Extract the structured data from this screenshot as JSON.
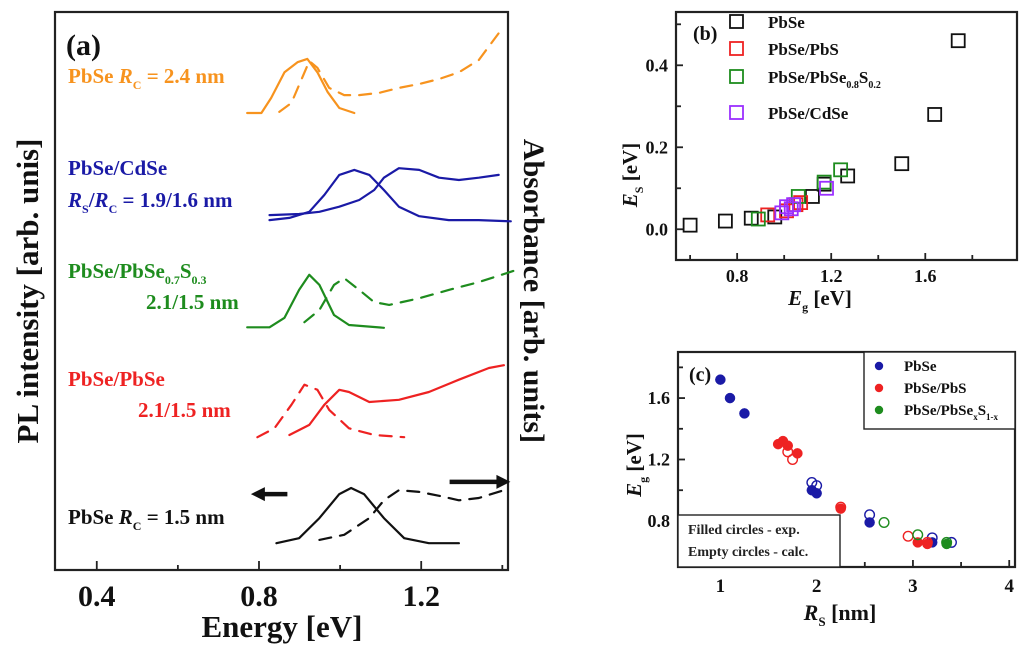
{
  "chart_data": [
    {
      "id": "a",
      "type": "line",
      "panel_label": "(a)",
      "xlabel": "Energy [eV]",
      "ylabel_left": "PL intensity [arb. unis]",
      "ylabel_right": "Absorbance [arb. units]",
      "xlim": [
        0.297,
        1.414
      ],
      "ylim": [
        0,
        100
      ],
      "xticks_major": [
        0.4,
        0.8,
        1.2
      ],
      "xticks_minor": [
        0.6,
        1.0,
        1.4
      ],
      "xtick_labels": [
        "0.4",
        "0.8",
        "1.2"
      ],
      "grid": false,
      "series": [
        {
          "name": "PbSe Rc = 2.4 nm PL",
          "color": "#f7931e",
          "style": "solid",
          "x": [
            0.771,
            0.806,
            0.83,
            0.863,
            0.895,
            0.919,
            0.944,
            0.969,
            0.998,
            1.035
          ],
          "y": [
            81.9,
            81.9,
            84.6,
            89.2,
            91.0,
            91.6,
            89.2,
            85.7,
            82.8,
            81.9
          ]
        },
        {
          "name": "PbSe Rc = 2.4 nm Absorbance",
          "color": "#f7931e",
          "style": "dashed",
          "x": [
            0.85,
            0.88,
            0.904,
            0.924,
            0.944,
            0.973,
            1.01,
            1.047,
            1.096,
            1.145,
            1.195,
            1.244,
            1.293,
            1.342,
            1.391
          ],
          "y": [
            82.1,
            83.7,
            87.8,
            91.2,
            90.0,
            86.4,
            85.1,
            85.1,
            85.5,
            86.4,
            87.1,
            88.0,
            89.2,
            91.4,
            96.2
          ]
        },
        {
          "name": "PbSe/CdSe PL",
          "color": "#1a1aa6",
          "style": "solid",
          "x": [
            0.826,
            0.875,
            0.924,
            0.961,
            0.998,
            1.035,
            1.072,
            1.108,
            1.145,
            1.195,
            1.268,
            1.342,
            1.421
          ],
          "y": [
            62.7,
            63.1,
            64.2,
            67.2,
            70.8,
            71.7,
            70.8,
            68.1,
            65.1,
            63.4,
            62.7,
            62.7,
            62.5
          ]
        },
        {
          "name": "PbSe/CdSe Absorbance",
          "color": "#1a1aa6",
          "style": "solid",
          "x": [
            0.826,
            0.899,
            0.949,
            0.998,
            1.047,
            1.084,
            1.108,
            1.145,
            1.195,
            1.244,
            1.293,
            1.342,
            1.391
          ],
          "y": [
            63.6,
            63.8,
            64.2,
            65.1,
            66.3,
            68.1,
            70.3,
            72.0,
            71.7,
            70.3,
            69.9,
            70.3,
            70.8
          ]
        },
        {
          "name": "PbSe/PbSe0.7S0.3 PL",
          "color": "#1e8c1e",
          "style": "solid",
          "x": [
            0.771,
            0.826,
            0.863,
            0.899,
            0.924,
            0.949,
            0.985,
            1.022,
            1.108
          ],
          "y": [
            43.5,
            43.5,
            45.2,
            50.2,
            52.9,
            51.1,
            45.7,
            43.9,
            43.4
          ]
        },
        {
          "name": "PbSe/PbSe0.7S0.3 Absorbance",
          "color": "#1e8c1e",
          "style": "dashed",
          "x": [
            0.912,
            0.949,
            0.985,
            1.01,
            1.047,
            1.084,
            1.121,
            1.195,
            1.268,
            1.342,
            1.436
          ],
          "y": [
            44.4,
            46.6,
            51.1,
            52.3,
            50.2,
            48.0,
            47.5,
            48.7,
            50.2,
            51.6,
            53.8
          ]
        },
        {
          "name": "PbSe/PbSe PL",
          "color": "#ee2222",
          "style": "dashed",
          "x": [
            0.796,
            0.838,
            0.88,
            0.912,
            0.944,
            0.973,
            1.022,
            1.084,
            1.158
          ],
          "y": [
            23.8,
            25.4,
            29.6,
            33.2,
            32.3,
            28.7,
            25.4,
            24.2,
            23.8
          ]
        },
        {
          "name": "PbSe/PbSe Absorbance",
          "color": "#ee2222",
          "style": "solid",
          "x": [
            0.875,
            0.924,
            0.961,
            0.998,
            1.022,
            1.072,
            1.145,
            1.219,
            1.293,
            1.367,
            1.404
          ],
          "y": [
            24.2,
            26.0,
            29.6,
            32.3,
            31.9,
            30.1,
            30.5,
            31.9,
            34.1,
            36.2,
            36.7
          ]
        },
        {
          "name": "PbSe Rc = 1.5 nm PL",
          "color": "#111111",
          "style": "solid",
          "x": [
            0.843,
            0.899,
            0.949,
            0.998,
            1.027,
            1.059,
            1.108,
            1.158,
            1.219,
            1.293
          ],
          "y": [
            4.8,
            5.7,
            9.3,
            13.6,
            14.7,
            13.6,
            9.3,
            5.7,
            4.8,
            4.8
          ]
        },
        {
          "name": "PbSe Rc = 1.5 nm Absorbance",
          "color": "#111111",
          "style": "dashed",
          "x": [
            0.949,
            1.01,
            1.072,
            1.108,
            1.145,
            1.195,
            1.244,
            1.293,
            1.342,
            1.404
          ],
          "y": [
            5.4,
            6.3,
            9.3,
            12.5,
            14.3,
            14.0,
            13.3,
            12.5,
            12.9,
            14.3
          ]
        }
      ],
      "arrows": [
        {
          "name": "arrow-left-PL-axis",
          "from": [
            0.87,
            13.6
          ],
          "to": [
            0.78,
            13.6
          ]
        },
        {
          "name": "arrow-right-absorbance-axis",
          "from": [
            1.27,
            15.8
          ],
          "to": [
            1.42,
            15.8
          ]
        }
      ],
      "annotations": [
        {
          "name": "label-pbse-2.4",
          "color": "#f7931e",
          "lines": [
            {
              "parts": [
                [
                  "PbSe ",
                  ""
                ],
                [
                  "R",
                  "i"
                ],
                [
                  "C",
                  "sub"
                ],
                [
                  " = 2.4 nm",
                  ""
                ]
              ]
            }
          ]
        },
        {
          "name": "label-pbse-cdse",
          "color": "#1a1aa6",
          "lines": [
            {
              "parts": [
                [
                  "PbSe/CdSe",
                  ""
                ]
              ]
            },
            {
              "parts": [
                [
                  "R",
                  "i"
                ],
                [
                  "S",
                  "sub"
                ],
                [
                  "/",
                  ""
                ],
                [
                  "R",
                  "i"
                ],
                [
                  "C",
                  "sub"
                ],
                [
                  " = 1.9/1.6 nm",
                  ""
                ]
              ]
            }
          ]
        },
        {
          "name": "label-pbse-pbses",
          "color": "#1e8c1e",
          "lines": [
            {
              "parts": [
                [
                  "PbSe/PbSe",
                  ""
                ],
                [
                  "0.7",
                  "sub"
                ],
                [
                  "S",
                  ""
                ],
                [
                  "0.3",
                  "sub"
                ]
              ]
            },
            {
              "parts": [
                [
                  "2.1/1.5 nm",
                  ""
                ]
              ]
            }
          ]
        },
        {
          "name": "label-pbse-pbse",
          "color": "#ee2222",
          "lines": [
            {
              "parts": [
                [
                  "PbSe/PbSe",
                  ""
                ]
              ]
            },
            {
              "parts": [
                [
                  "2.1/1.5 nm",
                  ""
                ]
              ]
            }
          ]
        },
        {
          "name": "label-pbse-1.5",
          "color": "#111111",
          "lines": [
            {
              "parts": [
                [
                  "PbSe ",
                  ""
                ],
                [
                  "R",
                  "i"
                ],
                [
                  "C",
                  "sub"
                ],
                [
                  " = 1.5 nm",
                  ""
                ]
              ]
            }
          ]
        }
      ]
    },
    {
      "id": "b",
      "type": "scatter",
      "panel_label": "(b)",
      "xlabel": "E_g [eV]",
      "ylabel": "E_S [eV]",
      "xlim": [
        0.54,
        1.99
      ],
      "ylim": [
        -0.075,
        0.53
      ],
      "xticks_major": [
        0.8,
        1.2,
        1.6
      ],
      "xticks_minor": [
        0.6,
        1.0,
        1.4,
        1.8
      ],
      "yticks_major": [
        0.0,
        0.2,
        0.4
      ],
      "yticks_minor": [
        0.1,
        0.3,
        0.5
      ],
      "grid": false,
      "legend": "top-left",
      "marker": "open-square",
      "series": [
        {
          "name": "PbSe",
          "color": "#111111",
          "x": [
            0.6,
            0.75,
            0.86,
            0.96,
            1.12,
            1.17,
            1.27,
            1.5,
            1.64,
            1.74
          ],
          "y": [
            0.01,
            0.02,
            0.027,
            0.03,
            0.08,
            0.11,
            0.13,
            0.16,
            0.28,
            0.46
          ]
        },
        {
          "name": "PbSe/PbS",
          "color": "#ee2222",
          "x": [
            0.93,
            1.01,
            1.05,
            1.07
          ],
          "y": [
            0.035,
            0.045,
            0.06,
            0.065
          ]
        },
        {
          "name": "PbSe/PbSe0.8S0.2",
          "color": "#1e8c1e",
          "x": [
            0.89,
            1.06,
            1.17,
            1.24
          ],
          "y": [
            0.025,
            0.08,
            0.115,
            0.145
          ]
        },
        {
          "name": "PbSe/CdSe",
          "color": "#9b30ff",
          "x": [
            0.99,
            1.01,
            1.03,
            1.04,
            1.18
          ],
          "y": [
            0.04,
            0.055,
            0.05,
            0.06,
            0.1
          ]
        }
      ],
      "legend_entries": [
        {
          "parts": [
            [
              "PbSe",
              ""
            ]
          ]
        },
        {
          "parts": [
            [
              "PbSe/PbS",
              ""
            ]
          ]
        },
        {
          "parts": [
            [
              "PbSe/PbSe",
              ""
            ],
            [
              "0.8",
              "sub"
            ],
            [
              "S",
              ""
            ],
            [
              "0.2",
              "sub"
            ]
          ]
        },
        {
          "parts": [
            [
              "PbSe/CdSe",
              ""
            ]
          ]
        }
      ]
    },
    {
      "id": "c",
      "type": "scatter",
      "panel_label": "(c)",
      "xlabel": "R_S [nm]",
      "ylabel": "E_g [eV]",
      "xlim": [
        0.56,
        4.06
      ],
      "ylim": [
        0.5,
        1.9
      ],
      "xticks_major": [
        1,
        2,
        3,
        4
      ],
      "xticks_minor": [
        1.5,
        2.5,
        3.5
      ],
      "yticks_major": [
        0.8,
        1.2,
        1.6
      ],
      "yticks_minor": [
        0.6,
        1.0,
        1.4,
        1.8
      ],
      "grid": false,
      "legend": "top-right",
      "note_box": [
        "Filled circles - exp.",
        "Empty circles - calc."
      ],
      "series": [
        {
          "name": "PbSe",
          "color": "#1a1aa6",
          "filled": true,
          "x": [
            1.0,
            1.1,
            1.25,
            1.95,
            2.0,
            2.55,
            3.2
          ],
          "y": [
            1.72,
            1.6,
            1.5,
            1.0,
            0.98,
            0.79,
            0.66
          ]
        },
        {
          "name": "PbSe calc",
          "color": "#1a1aa6",
          "filled": false,
          "x": [
            1.95,
            2.0,
            2.55,
            3.2,
            3.4
          ],
          "y": [
            1.05,
            1.03,
            0.84,
            0.69,
            0.66
          ]
        },
        {
          "name": "PbSe/PbS",
          "color": "#ee2222",
          "filled": true,
          "x": [
            1.6,
            1.65,
            1.7,
            1.8,
            2.25,
            3.05,
            3.15
          ],
          "y": [
            1.3,
            1.32,
            1.29,
            1.24,
            0.88,
            0.66,
            0.65
          ]
        },
        {
          "name": "PbSe/PbS calc",
          "color": "#ee2222",
          "filled": false,
          "x": [
            1.7,
            1.75,
            2.25,
            2.95,
            3.15
          ],
          "y": [
            1.25,
            1.2,
            0.89,
            0.7,
            0.66
          ]
        },
        {
          "name": "PbSe/PbSexS1-x",
          "color": "#1e8c1e",
          "filled": true,
          "x": [
            3.35
          ],
          "y": [
            0.65
          ]
        },
        {
          "name": "PbSe/PbSexS1-x calc",
          "color": "#1e8c1e",
          "filled": false,
          "x": [
            2.7,
            3.05,
            3.35
          ],
          "y": [
            0.79,
            0.71,
            0.66
          ]
        }
      ],
      "legend_entries": [
        {
          "color": "#1a1aa6",
          "parts": [
            [
              "PbSe",
              ""
            ]
          ]
        },
        {
          "color": "#ee2222",
          "parts": [
            [
              "PbSe/PbS",
              ""
            ]
          ]
        },
        {
          "color": "#1e8c1e",
          "parts": [
            [
              "PbSe/PbSe",
              ""
            ],
            [
              "x",
              "sub"
            ],
            [
              "S",
              ""
            ],
            [
              "1-x",
              "sub"
            ]
          ]
        }
      ]
    }
  ]
}
